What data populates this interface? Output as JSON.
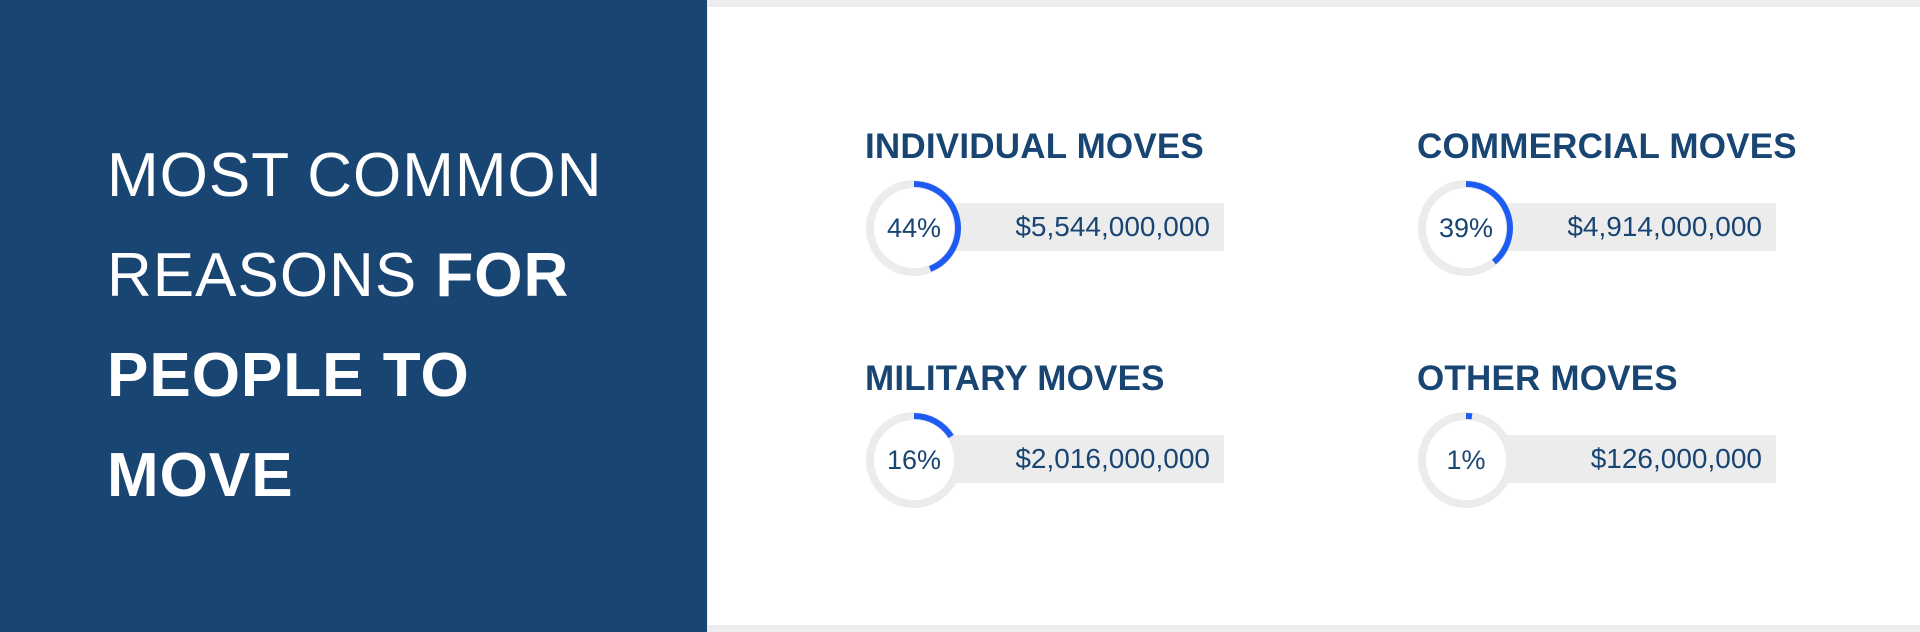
{
  "heading": {
    "line1": "MOST COMMON",
    "line2_light": "REASONS",
    "line2_bold": "FOR",
    "line3": "PEOPLE TO",
    "line4": "MOVE"
  },
  "colors": {
    "panel": "#194573",
    "accent": "#1d5cf2",
    "ring_track": "#ececec",
    "text": "#194573"
  },
  "chart_data": {
    "type": "pie",
    "categories": [
      "INDIVIDUAL MOVES",
      "COMMERCIAL MOVES",
      "MILITARY MOVES",
      "OTHER MOVES"
    ],
    "values": [
      44,
      39,
      16,
      1
    ],
    "value_labels": [
      "44%",
      "39%",
      "16%",
      "1%"
    ],
    "amounts": [
      "$5,544,000,000",
      "$4,914,000,000",
      "$2,016,000,000",
      "$126,000,000"
    ]
  }
}
